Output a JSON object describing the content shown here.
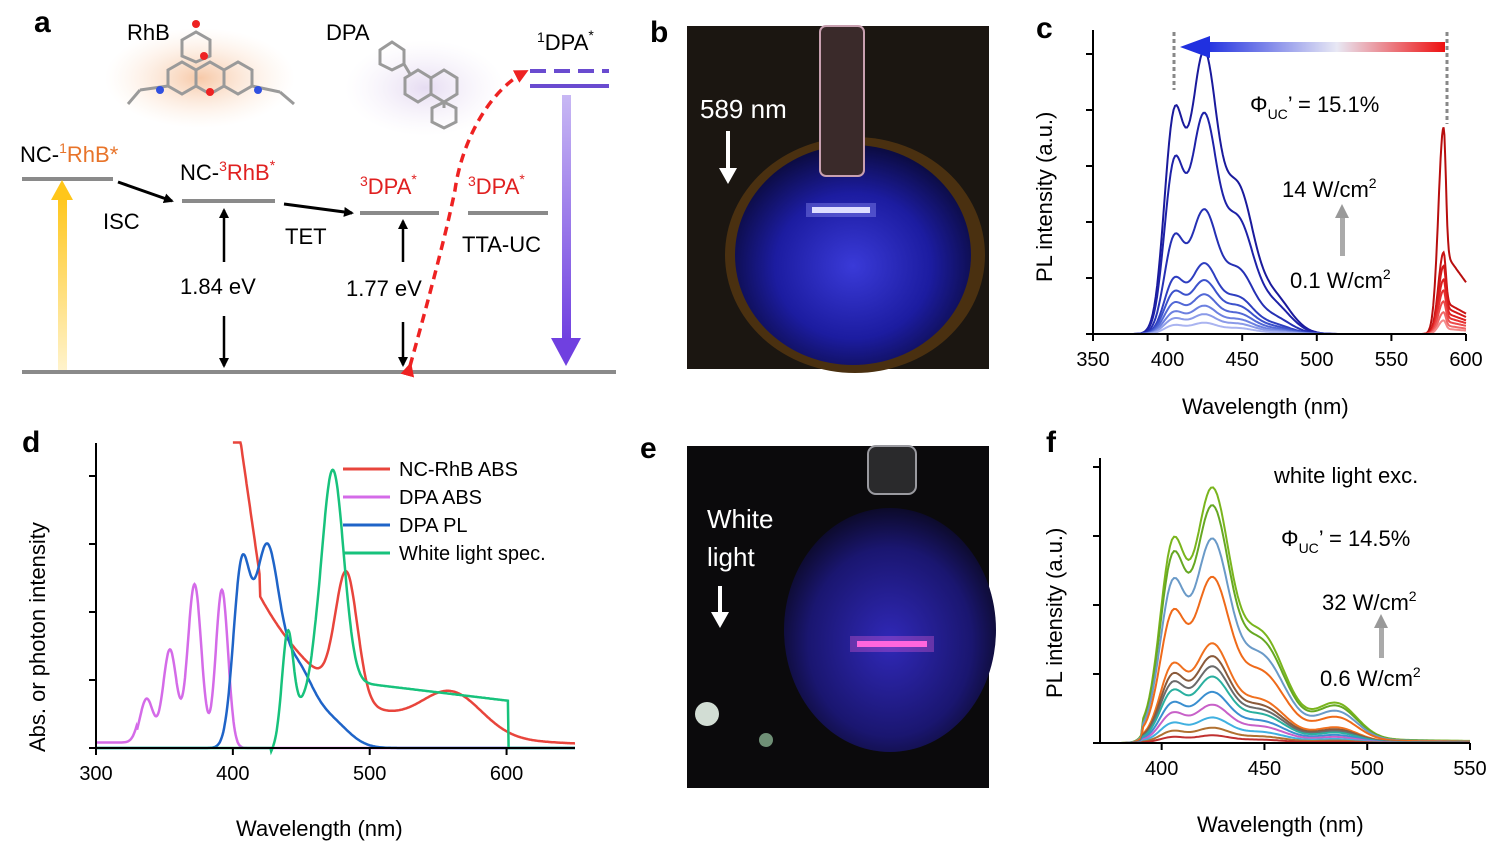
{
  "panels": {
    "a": {
      "label": "a",
      "rhb": "RhB",
      "dpa": "DPA",
      "dpa1_prefix": "1",
      "dpa1": "DPA",
      "dpa1_star": "*",
      "nc1_a": "NC-",
      "nc1_sup": "1",
      "nc1_b": "RhB*",
      "nc3_a": "NC-",
      "nc3_sup": "3",
      "nc3_b": "RhB",
      "nc3_star": "*",
      "dpa3_sup": "3",
      "dpa3": "DPA",
      "dpa3_star": "*",
      "dpa3b_sup": "3",
      "dpa3b": "DPA",
      "dpa3b_star": "*",
      "isc": "ISC",
      "tet": "TET",
      "ttauc": "TTA-UC",
      "e1": "1.84 eV",
      "e2": "1.77 eV"
    },
    "b": {
      "label": "b",
      "laser": "589 nm"
    },
    "c": {
      "label": "c",
      "phi": "Φ",
      "phi_sub": "UC",
      "phi_val": "’ = 15.1%",
      "power_hi": "14 W/cm",
      "power_lo": "0.1 W/cm",
      "sq": "2",
      "ylabel": "PL intensity (a.u.)",
      "xlabel": "Wavelength (nm)",
      "xticks": [
        "350",
        "400",
        "450",
        "500",
        "550",
        "600"
      ]
    },
    "d": {
      "label": "d",
      "ylabel": "Abs. or photon intensity",
      "xlabel": "Wavelength (nm)",
      "xticks": [
        "300",
        "400",
        "500",
        "600"
      ]
    },
    "e": {
      "label": "e",
      "text1": "White",
      "text2": "light"
    },
    "f": {
      "label": "f",
      "exc": "white light exc.",
      "phi": "Φ",
      "phi_sub": "UC",
      "phi_val": "’ = 14.5%",
      "power_hi": "32 W/cm",
      "power_lo": "0.6 W/cm",
      "sq": "2",
      "ylabel": "PL intensity (a.u.)",
      "xlabel": "Wavelength (nm)",
      "xticks": [
        "400",
        "450",
        "500",
        "550"
      ]
    }
  },
  "chart_data": [
    {
      "id": "c",
      "type": "line",
      "title": "",
      "xlabel": "Wavelength (nm)",
      "ylabel": "PL intensity (a.u.)",
      "xlim": [
        350,
        600
      ],
      "ylim": [
        0,
        1.0
      ],
      "series_blue_scales": [
        1.0,
        0.78,
        0.44,
        0.25,
        0.19,
        0.14,
        0.1,
        0.07,
        0.04
      ],
      "series_red_scales": [
        0.76,
        0.3,
        0.25,
        0.2,
        0.16,
        0.12,
        0.08,
        0.05
      ],
      "blue_peaks": [
        404,
        424,
        447
      ],
      "red_peak": 585,
      "colors": {
        "blue": "#1a1a9c",
        "red": "#cc1010"
      }
    },
    {
      "id": "d",
      "type": "line",
      "title": "",
      "xlabel": "Wavelength (nm)",
      "ylabel": "Abs. or photon intensity",
      "xlim": [
        300,
        650
      ],
      "ylim": [
        0,
        1.1
      ],
      "series": [
        {
          "name": "NC-RhB ABS",
          "color": "#e8453c"
        },
        {
          "name": "DPA ABS",
          "color": "#d46be8"
        },
        {
          "name": "DPA PL",
          "color": "#1f64c8"
        },
        {
          "name": "White light spec.",
          "color": "#17c27c"
        }
      ]
    },
    {
      "id": "f",
      "type": "line",
      "title": "",
      "xlabel": "Wavelength (nm)",
      "ylabel": "PL intensity (a.u.)",
      "xlim": [
        370,
        550
      ],
      "ylim": [
        0,
        1.0
      ],
      "scales": [
        1.0,
        0.93,
        0.8,
        0.65,
        0.39,
        0.34,
        0.3,
        0.26,
        0.2,
        0.15,
        0.1,
        0.06,
        0.03
      ],
      "colors": [
        "#7ab51d",
        "#66a823",
        "#6a9ac8",
        "#ef6a1a",
        "#f0701f",
        "#8a5a3a",
        "#6b6b6b",
        "#2ab0a0",
        "#3a8fd0",
        "#c860c8",
        "#40b0e0",
        "#b07030",
        "#c03030"
      ]
    }
  ]
}
